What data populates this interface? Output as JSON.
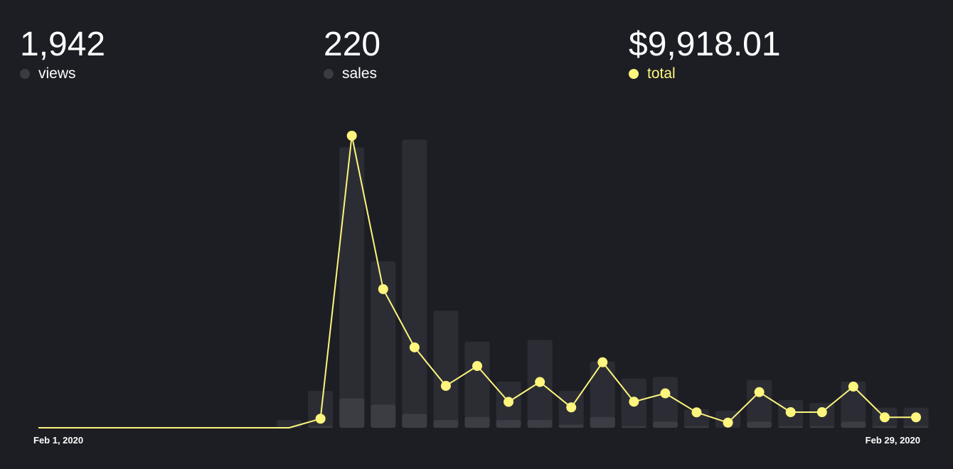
{
  "stats": {
    "views": {
      "value": "1,942",
      "label": "views",
      "dot_color": "#3a3b42",
      "label_color": "#ffffff"
    },
    "sales": {
      "value": "220",
      "label": "sales",
      "dot_color": "#3a3b42",
      "label_color": "#ffffff"
    },
    "total": {
      "value": "$9,918.01",
      "label": "total",
      "dot_color": "#fdf57d",
      "label_color": "#fdf57d"
    }
  },
  "colors": {
    "background": "#1d1e24",
    "views_bar": "#2c2d34",
    "sales_bar": "#3b3c44",
    "total_line": "#fdf57d"
  },
  "chart_data": {
    "type": "bar+line",
    "x_start_label": "Feb 1, 2020",
    "x_end_label": "Feb 29, 2020",
    "days": [
      1,
      2,
      3,
      4,
      5,
      6,
      7,
      8,
      9,
      10,
      11,
      12,
      13,
      14,
      15,
      16,
      17,
      18,
      19,
      20,
      21,
      22,
      23,
      24,
      25,
      26,
      27,
      28,
      29
    ],
    "series": [
      {
        "key": "views",
        "kind": "bar",
        "values": [
          0,
          0,
          0,
          0,
          0,
          0,
          0,
          0,
          5,
          24,
          182,
          108,
          187,
          76,
          56,
          30,
          57,
          24,
          43,
          32,
          33,
          12,
          11,
          31,
          18,
          16,
          30,
          13,
          13
        ]
      },
      {
        "key": "sales",
        "kind": "bar",
        "values": [
          0,
          0,
          0,
          0,
          0,
          0,
          0,
          0,
          0,
          1,
          19,
          15,
          9,
          5,
          7,
          5,
          5,
          2,
          7,
          1,
          4,
          1,
          0,
          4,
          1,
          1,
          4,
          1,
          1
        ]
      },
      {
        "key": "total",
        "kind": "line",
        "values": [
          0,
          0,
          0,
          0,
          0,
          0,
          0,
          0,
          0,
          51,
          1645,
          781,
          453,
          236,
          348,
          146,
          258,
          115,
          369,
          147,
          194,
          87,
          29,
          201,
          88,
          88,
          232,
          59,
          59
        ]
      }
    ]
  }
}
